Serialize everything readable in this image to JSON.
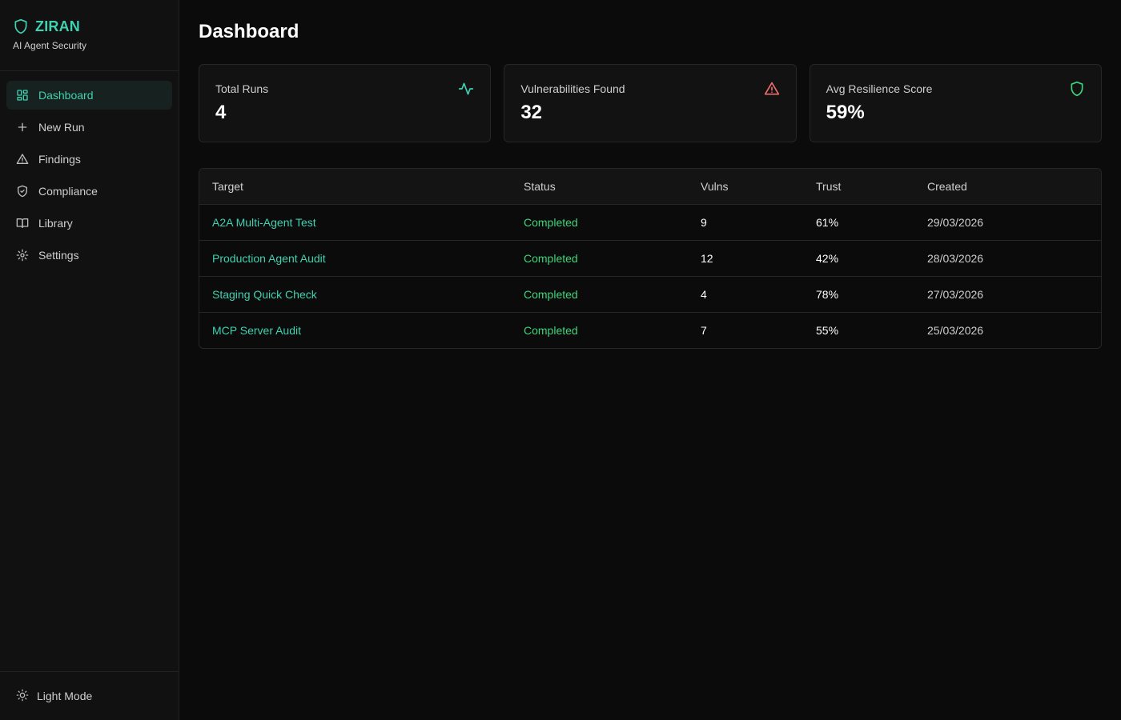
{
  "brand": {
    "name": "ZIRAN",
    "subtitle": "AI Agent Security"
  },
  "sidebar": {
    "items": [
      {
        "label": "Dashboard",
        "icon": "layout-grid-icon",
        "active": true
      },
      {
        "label": "New Run",
        "icon": "plus-icon"
      },
      {
        "label": "Findings",
        "icon": "alert-triangle-icon"
      },
      {
        "label": "Compliance",
        "icon": "shield-check-icon"
      },
      {
        "label": "Library",
        "icon": "book-open-icon"
      },
      {
        "label": "Settings",
        "icon": "gear-icon"
      }
    ],
    "footer": {
      "label": "Light Mode",
      "icon": "sun-icon"
    }
  },
  "page": {
    "title": "Dashboard"
  },
  "cards": [
    {
      "label": "Total Runs",
      "value": "4",
      "icon": "activity-icon",
      "color": "#3fd1b0"
    },
    {
      "label": "Vulnerabilities Found",
      "value": "32",
      "icon": "alert-triangle-icon",
      "color": "#f26d6d"
    },
    {
      "label": "Avg Resilience Score",
      "value": "59%",
      "icon": "shield-icon",
      "color": "#3fd47a"
    }
  ],
  "table": {
    "headers": [
      "Target",
      "Status",
      "Vulns",
      "Trust",
      "Created"
    ],
    "rows": [
      {
        "target": "A2A Multi-Agent Test",
        "status": "Completed",
        "vulns": "9",
        "trust": "61%",
        "created": "29/03/2026"
      },
      {
        "target": "Production Agent Audit",
        "status": "Completed",
        "vulns": "12",
        "trust": "42%",
        "created": "28/03/2026"
      },
      {
        "target": "Staging Quick Check",
        "status": "Completed",
        "vulns": "4",
        "trust": "78%",
        "created": "27/03/2026"
      },
      {
        "target": "MCP Server Audit",
        "status": "Completed",
        "vulns": "7",
        "trust": "55%",
        "created": "25/03/2026"
      }
    ]
  },
  "colors": {
    "accent": "#3fd1b0",
    "success": "#3fd47a",
    "danger": "#f26d6d",
    "background": "#0b0b0b"
  }
}
